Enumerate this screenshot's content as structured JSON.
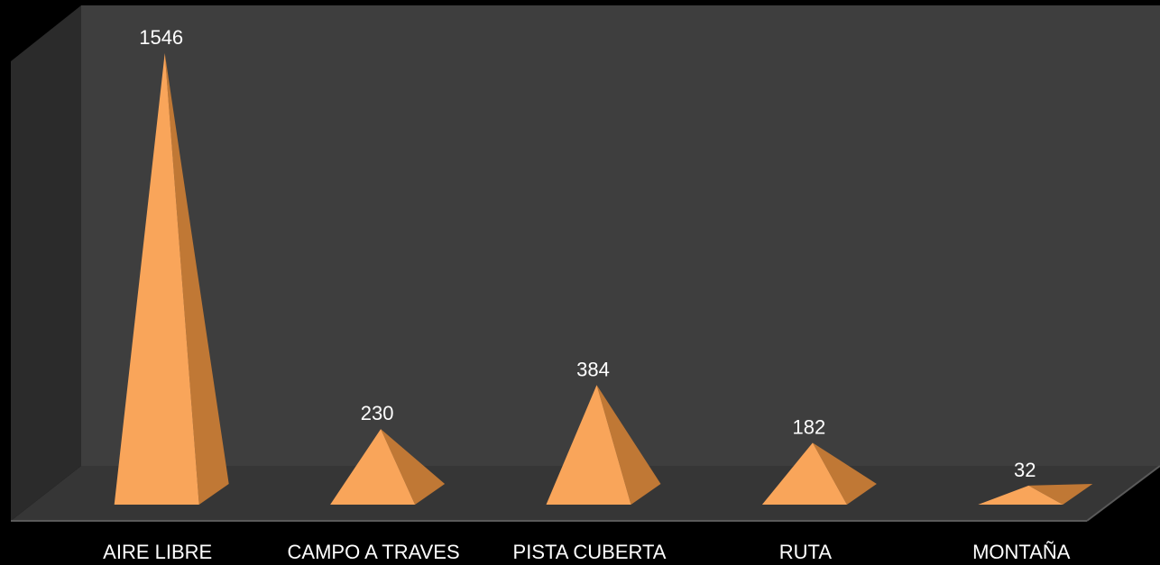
{
  "chart_data": {
    "type": "bar",
    "style": "3d-pyramid",
    "categories": [
      "AIRE LIBRE",
      "CAMPO A TRAVES",
      "PISTA CUBERTA",
      "RUTA",
      "MONTAÑA"
    ],
    "values": [
      1546,
      230,
      384,
      182,
      32
    ],
    "title": "",
    "xlabel": "",
    "ylabel": "",
    "ylim": [
      0,
      1600
    ],
    "grid": false,
    "legend": "none",
    "colors": {
      "bar_front": "#F9A55A",
      "bar_side": "#C07835",
      "back_wall": "#3E3E3E",
      "side_wall": "#2B2B2B",
      "floor": "#363636",
      "floor_edge": "#5A5A5A",
      "background": "#000000",
      "text": "#FFFFFF"
    }
  }
}
